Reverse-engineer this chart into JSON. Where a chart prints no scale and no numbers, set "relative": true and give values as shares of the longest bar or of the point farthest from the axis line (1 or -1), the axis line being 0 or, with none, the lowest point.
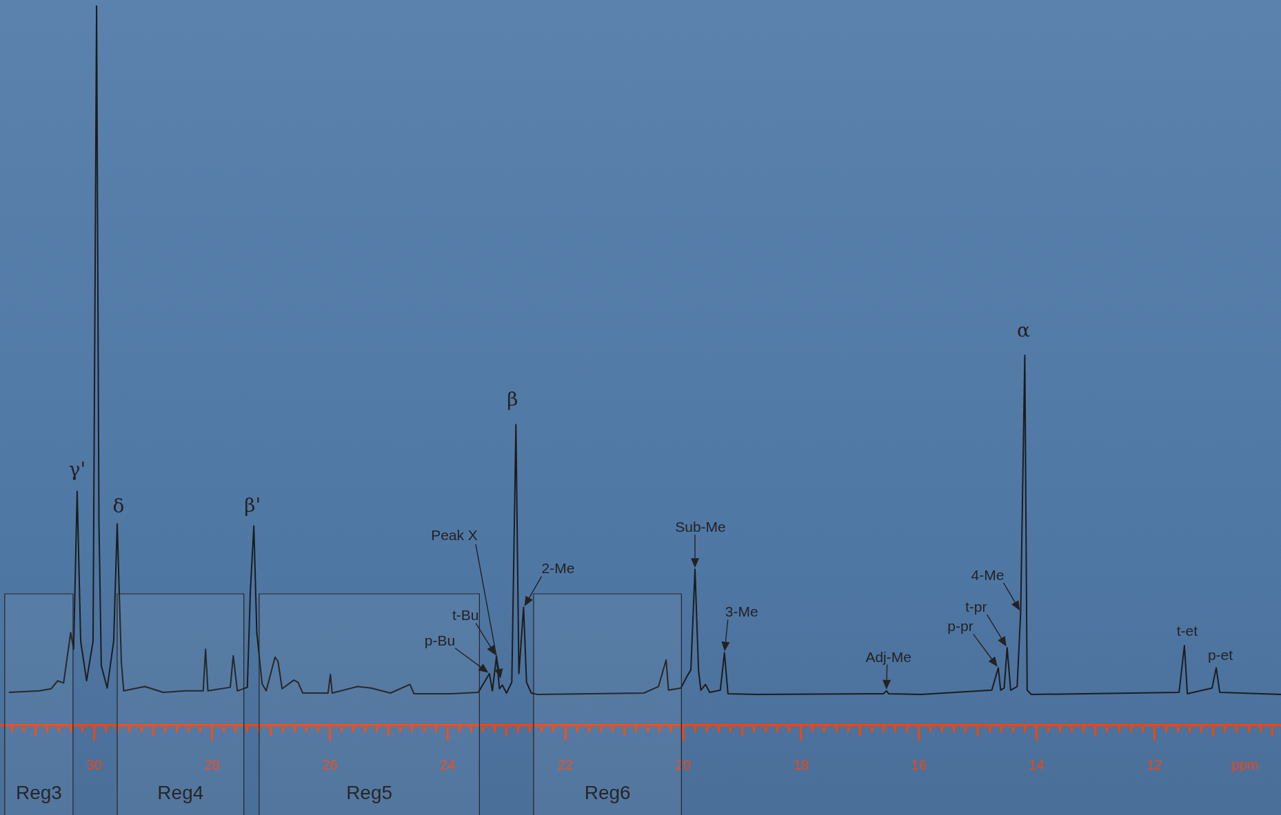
{
  "chart_data": {
    "type": "line",
    "relative": true,
    "xlabel": "ppm",
    "color": "#1c1c1c",
    "xlim": [
      31.6,
      9.85
    ],
    "xticks": [
      {
        "value": 31.4,
        "label": null
      },
      {
        "value": 31.2,
        "label": null
      },
      {
        "value": 31,
        "label": null
      },
      {
        "value": 30.8,
        "label": null
      },
      {
        "value": 30.6,
        "label": null
      },
      {
        "value": 30.4,
        "label": null
      },
      {
        "value": 30.2,
        "label": null
      },
      30,
      {
        "value": 29.8,
        "label": null
      },
      {
        "value": 29.6,
        "label": null
      },
      {
        "value": 29.4,
        "label": null
      },
      {
        "value": 29.2,
        "label": null
      },
      {
        "value": 29,
        "label": null
      },
      {
        "value": 28.8,
        "label": null
      },
      {
        "value": 28.6,
        "label": null
      },
      {
        "value": 28.4,
        "label": null
      },
      {
        "value": 28.2,
        "label": null
      },
      28,
      {
        "value": 27.8,
        "label": null
      },
      {
        "value": 27.6,
        "label": null
      },
      {
        "value": 27.4,
        "label": null
      },
      {
        "value": 27.2,
        "label": null
      },
      {
        "value": 27,
        "label": null
      },
      {
        "value": 26.8,
        "label": null
      },
      {
        "value": 26.6,
        "label": null
      },
      {
        "value": 26.4,
        "label": null
      },
      {
        "value": 26.2,
        "label": null
      },
      26,
      {
        "value": 25.8,
        "label": null
      },
      {
        "value": 25.6,
        "label": null
      },
      {
        "value": 25.4,
        "label": null
      },
      {
        "value": 25.2,
        "label": null
      },
      {
        "value": 25,
        "label": null
      },
      {
        "value": 24.8,
        "label": null
      },
      {
        "value": 24.6,
        "label": null
      },
      {
        "value": 24.4,
        "label": null
      },
      {
        "value": 24.2,
        "label": null
      },
      24,
      {
        "value": 23.8,
        "label": null
      },
      {
        "value": 23.6,
        "label": null
      },
      {
        "value": 23.4,
        "label": null
      },
      {
        "value": 23.2,
        "label": null
      },
      {
        "value": 23,
        "label": null
      },
      {
        "value": 22.8,
        "label": null
      },
      {
        "value": 22.6,
        "label": null
      },
      {
        "value": 22.4,
        "label": null
      },
      {
        "value": 22.2,
        "label": null
      },
      22,
      {
        "value": 21.8,
        "label": null
      },
      {
        "value": 21.6,
        "label": null
      },
      {
        "value": 21.4,
        "label": null
      },
      {
        "value": 21.2,
        "label": null
      },
      {
        "value": 21,
        "label": null
      },
      {
        "value": 20.8,
        "label": null
      },
      {
        "value": 20.6,
        "label": null
      },
      {
        "value": 20.4,
        "label": null
      },
      {
        "value": 20.2,
        "label": null
      },
      20,
      {
        "value": 19.8,
        "label": null
      },
      {
        "value": 19.6,
        "label": null
      },
      {
        "value": 19.4,
        "label": null
      },
      {
        "value": 19.2,
        "label": null
      },
      {
        "value": 19,
        "label": null
      },
      {
        "value": 18.8,
        "label": null
      },
      {
        "value": 18.6,
        "label": null
      },
      {
        "value": 18.4,
        "label": null
      },
      {
        "value": 18.2,
        "label": null
      },
      18,
      {
        "value": 17.8,
        "label": null
      },
      {
        "value": 17.6,
        "label": null
      },
      {
        "value": 17.4,
        "label": null
      },
      {
        "value": 17.2,
        "label": null
      },
      {
        "value": 17,
        "label": null
      },
      {
        "value": 16.8,
        "label": null
      },
      {
        "value": 16.6,
        "label": null
      },
      {
        "value": 16.4,
        "label": null
      },
      {
        "value": 16.2,
        "label": null
      },
      16,
      {
        "value": 15.8,
        "label": null
      },
      {
        "value": 15.6,
        "label": null
      },
      {
        "value": 15.4,
        "label": null
      },
      {
        "value": 15.2,
        "label": null
      },
      {
        "value": 15,
        "label": null
      },
      {
        "value": 14.8,
        "label": null
      },
      {
        "value": 14.6,
        "label": null
      },
      {
        "value": 14.4,
        "label": null
      },
      {
        "value": 14.2,
        "label": null
      },
      14,
      {
        "value": 13.8,
        "label": null
      },
      {
        "value": 13.6,
        "label": null
      },
      {
        "value": 13.4,
        "label": null
      },
      {
        "value": 13.2,
        "label": null
      },
      {
        "value": 13,
        "label": null
      },
      {
        "value": 12.8,
        "label": null
      },
      {
        "value": 12.6,
        "label": null
      },
      {
        "value": 12.4,
        "label": null
      },
      {
        "value": 12.2,
        "label": null
      },
      12,
      {
        "value": 11.8,
        "label": null
      },
      {
        "value": 11.6,
        "label": null
      },
      {
        "value": 11.4,
        "label": null
      },
      {
        "value": 11.2,
        "label": null
      },
      {
        "value": 11,
        "label": null
      },
      {
        "value": 10.8,
        "label": null
      },
      {
        "value": 10.6,
        "label": null
      },
      {
        "value": 10.4,
        "label": null
      },
      {
        "value": 10.2,
        "label": null
      },
      {
        "value": 10,
        "label": null
      }
    ],
    "x": [
      31.45,
      30.93,
      30.73,
      30.62,
      30.52,
      30.4,
      30.35,
      30.29,
      30.23,
      30.13,
      30.02,
      29.96,
      29.92,
      29.88,
      29.78,
      29.67,
      29.61,
      29.54,
      29.5,
      29.14,
      28.83,
      28.45,
      28.15,
      28.11,
      28.07,
      27.69,
      27.64,
      27.57,
      27.4,
      27.35,
      27.29,
      27.24,
      27.15,
      27.08,
      26.93,
      26.88,
      26.81,
      26.61,
      26.54,
      26.46,
      26.03,
      25.99,
      25.96,
      25.53,
      25.3,
      24.97,
      24.64,
      24.57,
      23.94,
      23.48,
      23.29,
      23.24,
      23.17,
      23.12,
      23.07,
      23.0,
      22.91,
      22.84,
      22.79,
      22.71,
      22.66,
      22.58,
      22.47,
      20.67,
      20.42,
      20.29,
      20.25,
      20.04,
      19.93,
      19.87,
      19.8,
      19.74,
      19.7,
      19.62,
      19.55,
      19.37,
      19.3,
      19.24,
      18.75,
      16.6,
      16.55,
      16.51,
      15.96,
      14.76,
      14.65,
      14.61,
      14.55,
      14.5,
      14.44,
      14.33,
      14.27,
      14.2,
      14.16,
      14.09,
      11.58,
      11.49,
      11.44,
      11.02,
      10.95,
      10.89,
      9.85
    ],
    "values": [
      0.046,
      0.048,
      0.051,
      0.062,
      0.059,
      0.129,
      0.106,
      0.325,
      0.117,
      0.062,
      0.117,
      1,
      0.282,
      0.083,
      0.052,
      0.117,
      0.28,
      0.089,
      0.048,
      0.054,
      0.046,
      0.048,
      0.048,
      0.106,
      0.048,
      0.053,
      0.097,
      0.048,
      0.053,
      0.185,
      0.277,
      0.129,
      0.058,
      0.048,
      0.095,
      0.089,
      0.051,
      0.063,
      0.06,
      0.045,
      0.045,
      0.071,
      0.045,
      0.054,
      0.052,
      0.045,
      0.057,
      0.044,
      0.044,
      0.046,
      0.072,
      0.048,
      0.096,
      0.051,
      0.056,
      0.045,
      0.06,
      0.418,
      0.072,
      0.164,
      0.06,
      0.045,
      0.043,
      0.045,
      0.054,
      0.091,
      0.049,
      0.052,
      0.069,
      0.077,
      0.217,
      0.077,
      0.049,
      0.057,
      0.046,
      0.049,
      0.101,
      0.044,
      0.043,
      0.044,
      0.048,
      0.044,
      0.043,
      0.049,
      0.08,
      0.049,
      0.052,
      0.108,
      0.049,
      0.054,
      0.158,
      0.514,
      0.049,
      0.043,
      0.046,
      0.111,
      0.044,
      0.052,
      0.08,
      0.046,
      0.043
    ],
    "bands": [
      {
        "axis": "x",
        "from": 31.52,
        "to": 30.36,
        "label": "Reg3"
      },
      {
        "axis": "x",
        "from": 29.61,
        "to": 27.46,
        "label": "Reg4"
      },
      {
        "axis": "x",
        "from": 27.2,
        "to": 23.46,
        "label": "Reg5"
      },
      {
        "axis": "x",
        "from": 22.54,
        "to": 20.03,
        "label": "Reg6"
      }
    ],
    "annotations": [
      {
        "text": "γ'",
        "x": 30.29,
        "y": 0.325
      },
      {
        "text": "δ",
        "x": 29.61,
        "y": 0.28
      },
      {
        "text": "β'",
        "x": 27.29,
        "y": 0.277
      },
      {
        "text": "β",
        "x": 22.84,
        "y": 0.418
      },
      {
        "text": "α",
        "x": 14.2,
        "y": 0.514
      },
      "Peak X",
      {
        "text": "t-Bu",
        "x": 23.17,
        "y": 0.096
      },
      {
        "text": "p-Bu",
        "x": 23.29,
        "y": 0.072
      },
      {
        "text": "2-Me",
        "x": 22.71,
        "y": 0.164
      },
      {
        "text": "Sub-Me",
        "x": 19.8,
        "y": 0.217
      },
      {
        "text": "3-Me",
        "x": 19.3,
        "y": 0.101
      },
      {
        "text": "Adj-Me",
        "x": 16.55,
        "y": 0.048
      },
      {
        "text": "p-pr",
        "x": 14.65,
        "y": 0.08
      },
      {
        "text": "t-pr",
        "x": 14.5,
        "y": 0.108
      },
      {
        "text": "4-Me",
        "x": 14.27,
        "y": 0.158
      },
      {
        "text": "t-et",
        "x": 11.49,
        "y": 0.111
      },
      {
        "text": "p-et",
        "x": 10.95,
        "y": 0.08
      }
    ]
  }
}
